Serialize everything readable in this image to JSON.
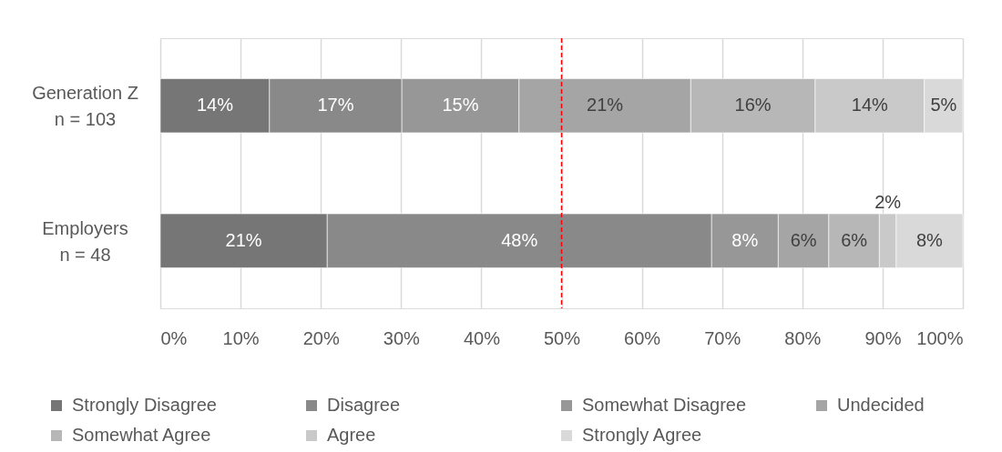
{
  "chart_data": {
    "type": "bar",
    "orientation": "horizontal",
    "stacked": true,
    "categories": [
      "Generation Z\nn = 103",
      "Employers\nn = 48"
    ],
    "series": [
      {
        "name": "Strongly Disagree",
        "color": "#767676",
        "values": [
          13.6,
          20.8
        ],
        "value_labels": [
          "14%",
          "21%"
        ]
      },
      {
        "name": "Disagree",
        "color": "#898989",
        "values": [
          16.5,
          47.9
        ],
        "value_labels": [
          "17%",
          "48%"
        ]
      },
      {
        "name": "Somewhat Disagree",
        "color": "#979797",
        "values": [
          14.6,
          8.3
        ],
        "value_labels": [
          "15%",
          "8%"
        ]
      },
      {
        "name": "Undecided",
        "color": "#a5a5a5",
        "values": [
          21.4,
          6.3
        ],
        "value_labels": [
          "21%",
          "6%"
        ]
      },
      {
        "name": "Somewhat Agree",
        "color": "#b7b7b7",
        "values": [
          15.5,
          6.3
        ],
        "value_labels": [
          "16%",
          "6%"
        ]
      },
      {
        "name": "Agree",
        "color": "#c9c9c9",
        "values": [
          13.6,
          2.1
        ],
        "value_labels": [
          "14%",
          "2%"
        ]
      },
      {
        "name": "Strongly Agree",
        "color": "#d9d9d9",
        "values": [
          4.8,
          8.3
        ],
        "value_labels": [
          "5%",
          "8%"
        ]
      }
    ],
    "xlim": [
      0,
      100
    ],
    "xticks": [
      {
        "value": 0,
        "label": "0%"
      },
      {
        "value": 10,
        "label": "10%"
      },
      {
        "value": 20,
        "label": "20%"
      },
      {
        "value": 30,
        "label": "30%"
      },
      {
        "value": 40,
        "label": "40%"
      },
      {
        "value": 50,
        "label": "50%"
      },
      {
        "value": 60,
        "label": "60%"
      },
      {
        "value": 70,
        "label": "70%"
      },
      {
        "value": 80,
        "label": "80%"
      },
      {
        "value": 90,
        "label": "90%"
      },
      {
        "value": 100,
        "label": "100%"
      }
    ],
    "grid": "x",
    "legend": "bottom",
    "ref_lines": [
      {
        "axis": "x",
        "value": 50,
        "color": "#ff0000",
        "line_style": "dashed"
      }
    ]
  }
}
